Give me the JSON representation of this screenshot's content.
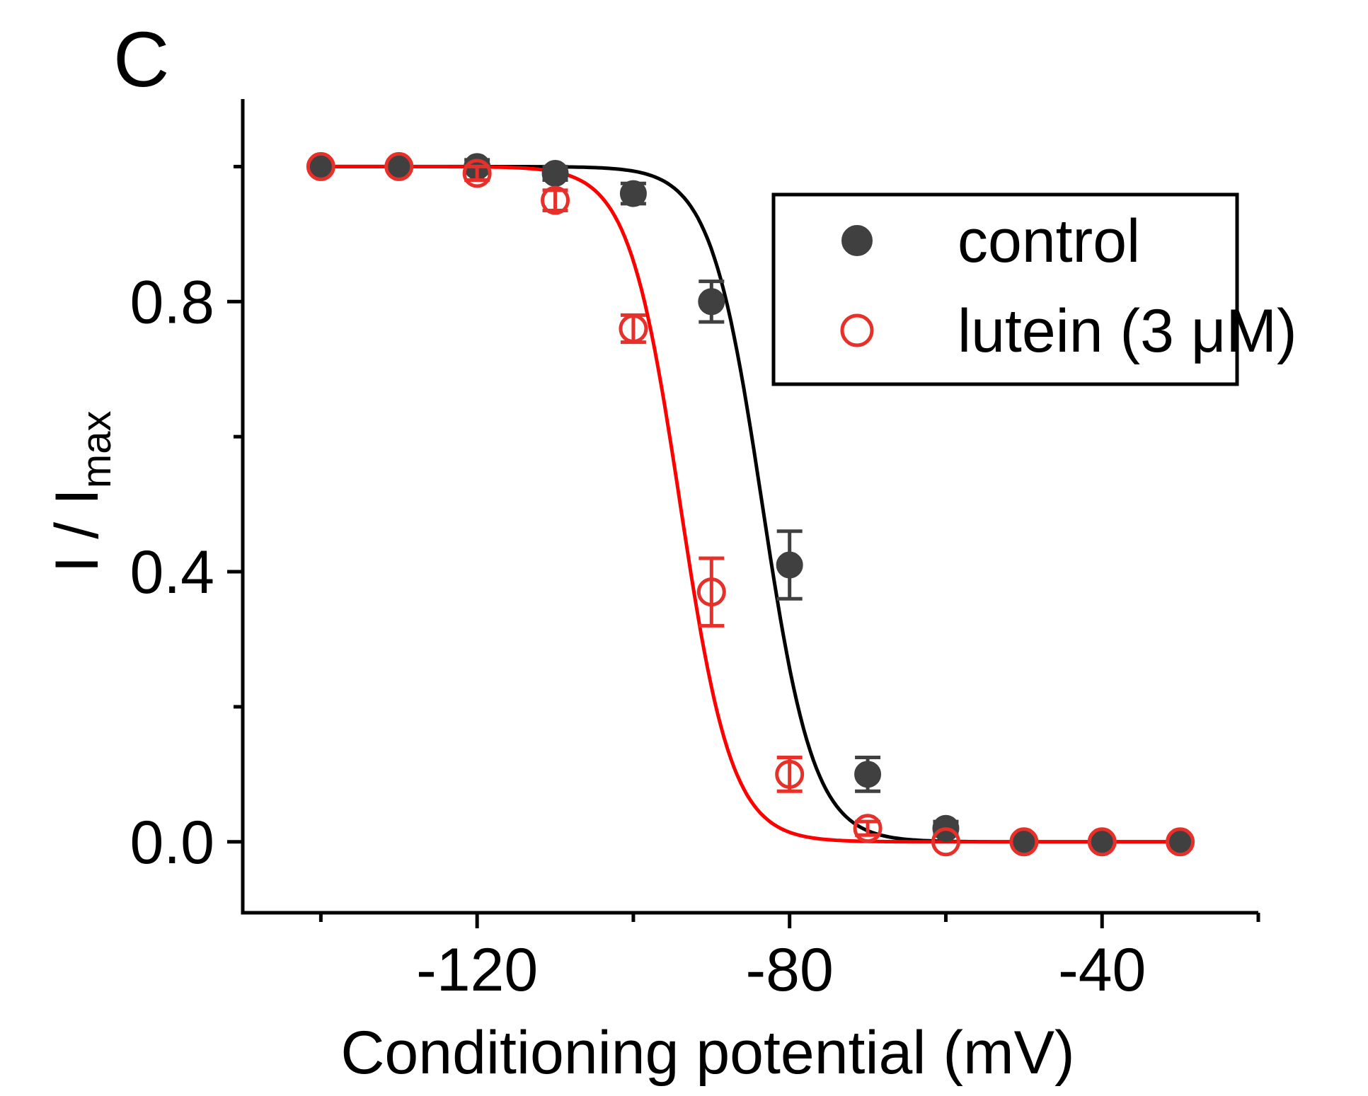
{
  "panel_label": "C",
  "chart_data": {
    "type": "scatter",
    "title": "",
    "xlabel": "Conditioning potential (mV)",
    "ylabel_main": "I / I",
    "ylabel_sub": "max",
    "xlim": [
      -150,
      -20
    ],
    "ylim": [
      -0.105,
      1.1
    ],
    "x_ticks": [
      -120,
      -80,
      -40
    ],
    "x_tick_labels": [
      "-120",
      "-80",
      "-40"
    ],
    "x_minor_ticks": [
      -140,
      -100,
      -60,
      -20
    ],
    "y_ticks": [
      0.0,
      0.4,
      0.8
    ],
    "y_tick_labels": [
      "0.0",
      "0.4",
      "0.8"
    ],
    "y_minor_ticks": [
      0.2,
      0.6,
      1.0
    ],
    "grid": false,
    "legend_position": "top-right",
    "series": [
      {
        "name": "control",
        "color": "#404040",
        "marker": "filled-circle",
        "fit_color": "#000000",
        "fit": {
          "v_half": -83.5,
          "k": 3.3
        },
        "points": [
          {
            "x": -140,
            "y": 1.0,
            "err": 0.0
          },
          {
            "x": -130,
            "y": 1.0,
            "err": 0.0
          },
          {
            "x": -120,
            "y": 1.0,
            "err": 0.01
          },
          {
            "x": -110,
            "y": 0.99,
            "err": 0.01
          },
          {
            "x": -100,
            "y": 0.96,
            "err": 0.015
          },
          {
            "x": -90,
            "y": 0.8,
            "err": 0.03
          },
          {
            "x": -80,
            "y": 0.41,
            "err": 0.05
          },
          {
            "x": -70,
            "y": 0.1,
            "err": 0.025
          },
          {
            "x": -60,
            "y": 0.02,
            "err": 0.01
          },
          {
            "x": -50,
            "y": 0.0,
            "err": 0.0
          },
          {
            "x": -40,
            "y": 0.0,
            "err": 0.0
          },
          {
            "x": -30,
            "y": 0.0,
            "err": 0.0
          }
        ]
      },
      {
        "name": "lutein (3 μM)",
        "color": "#e8302a",
        "marker": "open-circle",
        "fit_color": "#ff0000",
        "fit": {
          "v_half": -94.0,
          "k": 3.3
        },
        "points": [
          {
            "x": -140,
            "y": 1.0,
            "err": 0.0
          },
          {
            "x": -130,
            "y": 1.0,
            "err": 0.0
          },
          {
            "x": -120,
            "y": 0.99,
            "err": 0.01
          },
          {
            "x": -110,
            "y": 0.95,
            "err": 0.015
          },
          {
            "x": -100,
            "y": 0.76,
            "err": 0.02
          },
          {
            "x": -90,
            "y": 0.37,
            "err": 0.05
          },
          {
            "x": -80,
            "y": 0.1,
            "err": 0.025
          },
          {
            "x": -70,
            "y": 0.02,
            "err": 0.01
          },
          {
            "x": -60,
            "y": 0.0,
            "err": 0.0
          },
          {
            "x": -50,
            "y": 0.0,
            "err": 0.0
          },
          {
            "x": -40,
            "y": 0.0,
            "err": 0.0
          },
          {
            "x": -30,
            "y": 0.0,
            "err": 0.0
          }
        ]
      }
    ]
  }
}
